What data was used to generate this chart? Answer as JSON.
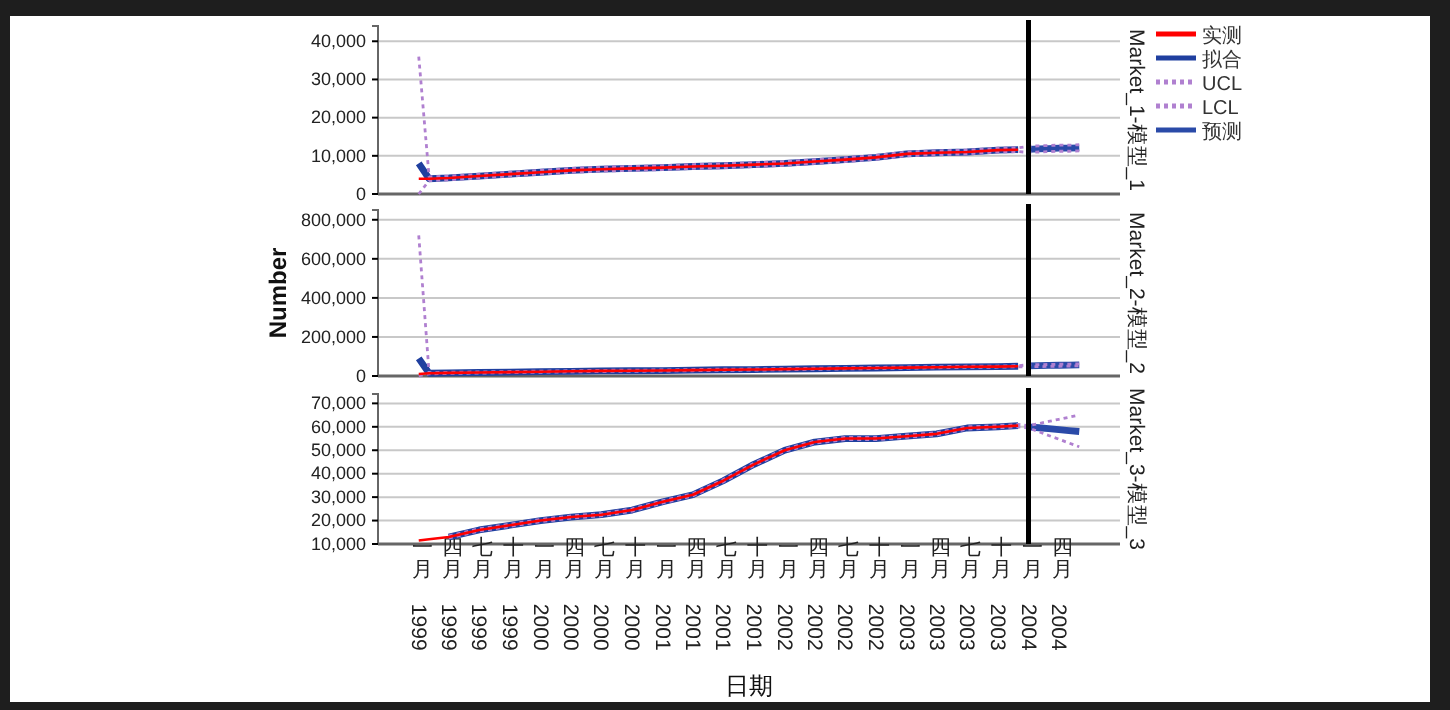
{
  "chart_data": [
    {
      "type": "line",
      "title": "Market_1-模型_1",
      "x": [
        "1999-01",
        "1999-02",
        "1999-04",
        "1999-07",
        "1999-10",
        "2000-01",
        "2000-04",
        "2000-07",
        "2000-10",
        "2001-01",
        "2001-04",
        "2001-07",
        "2001-10",
        "2002-01",
        "2002-04",
        "2002-07",
        "2002-10",
        "2003-01",
        "2003-04",
        "2003-07",
        "2003-10",
        "2003-12",
        "2004-01",
        "2004-02",
        "2004-03",
        "2004-04",
        "2004-05",
        "2004-06"
      ],
      "series": [
        {
          "name": "实测",
          "color": "#ff0000",
          "line_style": "solid",
          "values": [
            4000,
            4000,
            4200,
            4700,
            5200,
            5700,
            6200,
            6500,
            6700,
            6900,
            7200,
            7400,
            7700,
            8000,
            8500,
            9000,
            9600,
            10500,
            10800,
            11000,
            11500,
            11600,
            null,
            null,
            null,
            null,
            null,
            null
          ]
        },
        {
          "name": "拟合",
          "color": "#1f3f9f",
          "line_style": "solid",
          "values": [
            8000,
            4000,
            4200,
            4700,
            5200,
            5700,
            6200,
            6500,
            6700,
            6900,
            7200,
            7400,
            7700,
            8000,
            8500,
            9000,
            9600,
            10500,
            10800,
            11000,
            11500,
            11600,
            null,
            null,
            null,
            null,
            null,
            null
          ]
        },
        {
          "name": "UCL",
          "color": "#b080d0",
          "line_style": "dotted",
          "values": [
            36000,
            4500,
            4700,
            5200,
            5700,
            6200,
            6700,
            7000,
            7200,
            7400,
            7700,
            7900,
            8200,
            8500,
            9000,
            9500,
            10100,
            11000,
            11300,
            11500,
            12000,
            12100,
            12500,
            12600,
            12700,
            12800,
            12800,
            12900
          ]
        },
        {
          "name": "LCL",
          "color": "#b080d0",
          "line_style": "dotted",
          "values": [
            0,
            3500,
            3700,
            4200,
            4700,
            5200,
            5700,
            6000,
            6200,
            6400,
            6700,
            6900,
            7200,
            7500,
            8000,
            8500,
            9100,
            10000,
            10300,
            10500,
            11000,
            11100,
            10900,
            11000,
            11100,
            11200,
            11200,
            11300
          ]
        },
        {
          "name": "预测",
          "color": "#2a4aa8",
          "line_style": "solid",
          "values": [
            null,
            null,
            null,
            null,
            null,
            null,
            null,
            null,
            null,
            null,
            null,
            null,
            null,
            null,
            null,
            null,
            null,
            null,
            null,
            null,
            null,
            null,
            11700,
            11800,
            11900,
            12000,
            12000,
            12100
          ]
        }
      ],
      "xlim": [
        "1998-09",
        "2004-10"
      ],
      "ylim": [
        0,
        44000
      ],
      "yticks": [
        {
          "value": 0,
          "label": "0"
        },
        {
          "value": 10000,
          "label": "10,000"
        },
        {
          "value": 20000,
          "label": "20,000"
        },
        {
          "value": 30000,
          "label": "30,000"
        },
        {
          "value": 40000,
          "label": "40,000"
        }
      ],
      "tick_labels": "y",
      "grid": "y",
      "legend": "right",
      "marker": "none",
      "ref_lines": [
        {
          "axis": "x",
          "value": "2004-01",
          "color": "#000000"
        }
      ]
    },
    {
      "type": "line",
      "title": "Market_2-模型_2",
      "ylabel": "Number",
      "x": [
        "1999-01",
        "1999-02",
        "1999-04",
        "1999-07",
        "1999-10",
        "2000-01",
        "2000-04",
        "2000-07",
        "2000-10",
        "2001-01",
        "2001-04",
        "2001-07",
        "2001-10",
        "2002-01",
        "2002-04",
        "2002-07",
        "2002-10",
        "2003-01",
        "2003-04",
        "2003-07",
        "2003-10",
        "2003-12",
        "2004-01",
        "2004-02",
        "2004-03",
        "2004-04",
        "2004-05",
        "2004-06"
      ],
      "series": [
        {
          "color": "#ff0000",
          "line_style": "solid",
          "values": [
            10000,
            14000,
            16000,
            18000,
            20000,
            22000,
            24000,
            26000,
            27000,
            28000,
            30000,
            32000,
            33000,
            35000,
            37000,
            39000,
            41000,
            43000,
            45000,
            47000,
            48000,
            50000,
            null,
            null,
            null,
            null,
            null,
            null
          ]
        },
        {
          "color": "#1f3f9f",
          "line_style": "solid",
          "values": [
            90000,
            14000,
            16000,
            18000,
            20000,
            22000,
            24000,
            26000,
            27000,
            28000,
            30000,
            32000,
            33000,
            35000,
            37000,
            39000,
            41000,
            43000,
            45000,
            47000,
            48000,
            50000,
            null,
            null,
            null,
            null,
            null,
            null
          ]
        },
        {
          "color": "#b080d0",
          "line_style": "dotted",
          "values": [
            720000,
            17000,
            19000,
            21000,
            23000,
            25000,
            27000,
            29000,
            30000,
            31000,
            33000,
            35000,
            36000,
            38000,
            40000,
            42000,
            44000,
            46000,
            48000,
            50000,
            51000,
            53000,
            57000,
            58000,
            59000,
            60000,
            61000,
            62000
          ]
        },
        {
          "color": "#b080d0",
          "line_style": "dotted",
          "values": [
            0,
            11000,
            13000,
            15000,
            17000,
            19000,
            21000,
            23000,
            24000,
            25000,
            27000,
            29000,
            30000,
            32000,
            34000,
            36000,
            38000,
            40000,
            42000,
            44000,
            45000,
            47000,
            47000,
            48000,
            49000,
            50000,
            51000,
            52000
          ]
        },
        {
          "color": "#2a4aa8",
          "line_style": "solid",
          "values": [
            null,
            null,
            null,
            null,
            null,
            null,
            null,
            null,
            null,
            null,
            null,
            null,
            null,
            null,
            null,
            null,
            null,
            null,
            null,
            null,
            null,
            null,
            52000,
            53000,
            54000,
            55000,
            56000,
            57000
          ]
        }
      ],
      "xlim": [
        "1998-09",
        "2004-10"
      ],
      "ylim": [
        0,
        850000
      ],
      "yticks": [
        {
          "value": 0,
          "label": "0"
        },
        {
          "value": 200000,
          "label": "200,000"
        },
        {
          "value": 400000,
          "label": "400,000"
        },
        {
          "value": 600000,
          "label": "600,000"
        },
        {
          "value": 800000,
          "label": "800,000"
        }
      ],
      "tick_labels": "y",
      "grid": "y",
      "marker": "none",
      "ref_lines": [
        {
          "axis": "x",
          "value": "2004-01",
          "color": "#000000"
        }
      ]
    },
    {
      "type": "line",
      "title": "Market_3-模型_3",
      "xlabel": "日期",
      "x": [
        "1999-01",
        "1999-02",
        "1999-04",
        "1999-07",
        "1999-10",
        "2000-01",
        "2000-04",
        "2000-07",
        "2000-10",
        "2001-01",
        "2001-04",
        "2001-07",
        "2001-10",
        "2002-01",
        "2002-04",
        "2002-07",
        "2002-10",
        "2003-01",
        "2003-04",
        "2003-07",
        "2003-10",
        "2003-12",
        "2004-01",
        "2004-02",
        "2004-03",
        "2004-04",
        "2004-05",
        "2004-06"
      ],
      "series": [
        {
          "color": "#ff0000",
          "line_style": "solid",
          "values": [
            11500,
            12000,
            13000,
            16000,
            18000,
            20000,
            21500,
            22500,
            24500,
            28000,
            31000,
            37000,
            44000,
            50000,
            53500,
            55000,
            55000,
            56000,
            57000,
            59500,
            60000,
            60500,
            null,
            null,
            null,
            null,
            null,
            null
          ]
        },
        {
          "color": "#1f3f9f",
          "line_style": "solid",
          "values": [
            null,
            null,
            13000,
            16000,
            18000,
            20000,
            21500,
            22500,
            24500,
            28000,
            31000,
            37000,
            44000,
            50000,
            53500,
            55000,
            55000,
            56000,
            57000,
            59500,
            60000,
            60500,
            null,
            null,
            null,
            null,
            null,
            null
          ]
        },
        {
          "color": "#b080d0",
          "line_style": "dotted",
          "values": [
            null,
            null,
            13500,
            16500,
            18500,
            20500,
            22000,
            23000,
            25000,
            28500,
            31500,
            37500,
            44500,
            50500,
            54000,
            55500,
            55500,
            56500,
            57500,
            60000,
            60500,
            61000,
            60500,
            61400,
            62300,
            63200,
            64100,
            65000
          ]
        },
        {
          "color": "#b080d0",
          "line_style": "dotted",
          "values": [
            null,
            null,
            12500,
            15500,
            17500,
            19500,
            21000,
            22000,
            24000,
            27500,
            30500,
            36500,
            43500,
            49500,
            53000,
            54500,
            54500,
            55500,
            56500,
            59000,
            59500,
            60000,
            59500,
            57900,
            56300,
            54700,
            53100,
            51500
          ]
        },
        {
          "color": "#2a4aa8",
          "line_style": "solid",
          "values": [
            null,
            null,
            null,
            null,
            null,
            null,
            null,
            null,
            null,
            null,
            null,
            null,
            null,
            null,
            null,
            null,
            null,
            null,
            null,
            null,
            null,
            null,
            60000,
            59600,
            59200,
            58800,
            58400,
            58000
          ]
        }
      ],
      "xlim": [
        "1998-09",
        "2004-10"
      ],
      "ylim": [
        10000,
        74000
      ],
      "yticks": [
        {
          "value": 10000,
          "label": "10,000"
        },
        {
          "value": 20000,
          "label": "20,000"
        },
        {
          "value": 30000,
          "label": "30,000"
        },
        {
          "value": 40000,
          "label": "40,000"
        },
        {
          "value": 50000,
          "label": "50,000"
        },
        {
          "value": 60000,
          "label": "60,000"
        },
        {
          "value": 70000,
          "label": "70,000"
        }
      ],
      "xticks": [
        {
          "value": "1999-01",
          "label": "一月 1999"
        },
        {
          "value": "1999-04",
          "label": "四月 1999"
        },
        {
          "value": "1999-07",
          "label": "七月 1999"
        },
        {
          "value": "1999-10",
          "label": "十月 1999"
        },
        {
          "value": "2000-01",
          "label": "一月 2000"
        },
        {
          "value": "2000-04",
          "label": "四月 2000"
        },
        {
          "value": "2000-07",
          "label": "七月 2000"
        },
        {
          "value": "2000-10",
          "label": "十月 2000"
        },
        {
          "value": "2001-01",
          "label": "一月 2001"
        },
        {
          "value": "2001-04",
          "label": "四月 2001"
        },
        {
          "value": "2001-07",
          "label": "七月 2001"
        },
        {
          "value": "2001-10",
          "label": "十月 2001"
        },
        {
          "value": "2002-01",
          "label": "一月 2002"
        },
        {
          "value": "2002-04",
          "label": "四月 2002"
        },
        {
          "value": "2002-07",
          "label": "七月 2002"
        },
        {
          "value": "2002-10",
          "label": "十月 2002"
        },
        {
          "value": "2003-01",
          "label": "一月 2003"
        },
        {
          "value": "2003-04",
          "label": "四月 2003"
        },
        {
          "value": "2003-07",
          "label": "七月 2003"
        },
        {
          "value": "2003-10",
          "label": "十月 2003"
        },
        {
          "value": "2004-01",
          "label": "一月 2004"
        },
        {
          "value": "2004-04",
          "label": "四月 2004"
        }
      ],
      "grid": "y",
      "marker": "none",
      "ref_lines": [
        {
          "axis": "x",
          "value": "2004-01",
          "color": "#000000"
        }
      ]
    }
  ]
}
